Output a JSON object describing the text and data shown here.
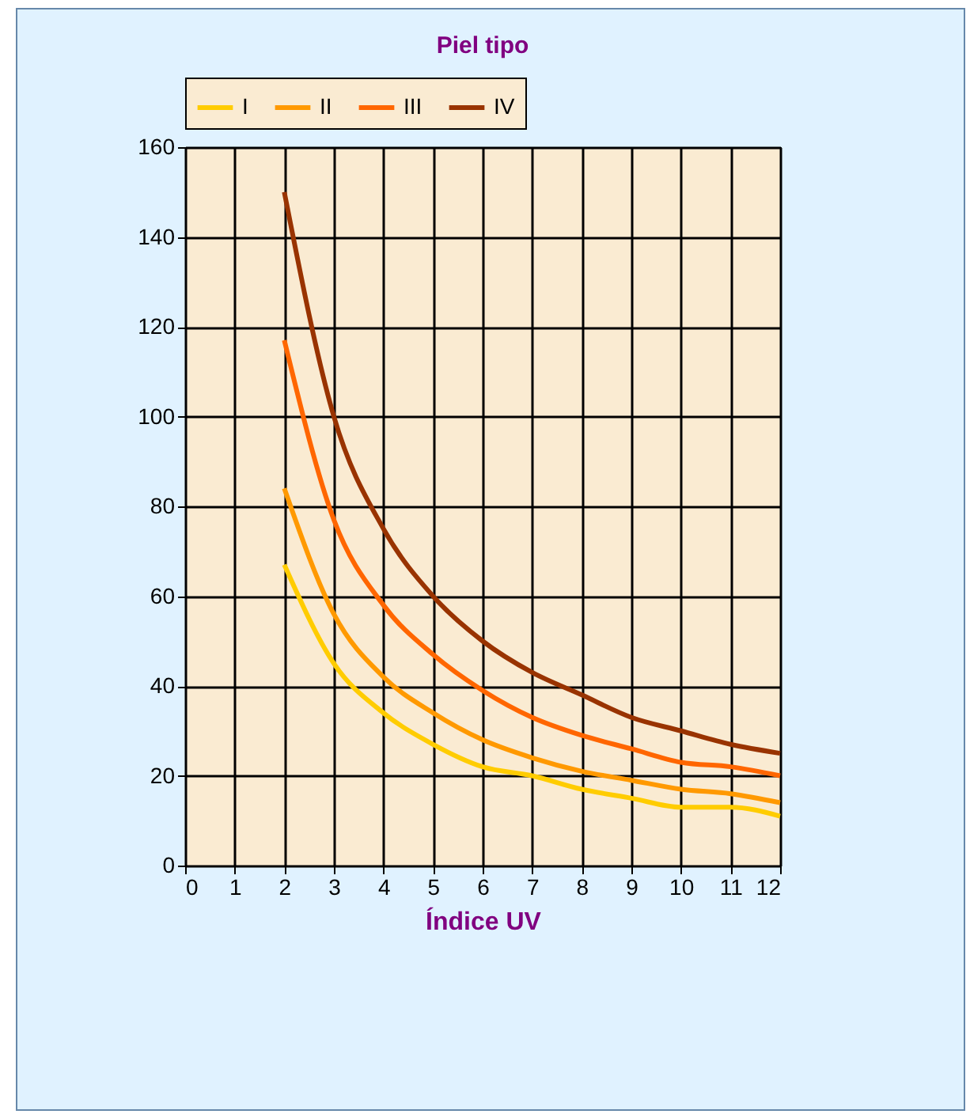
{
  "chart_data": {
    "type": "line",
    "title": "Piel tipo",
    "xlabel": "Índice UV",
    "x": [
      2,
      3,
      4,
      5,
      6,
      7,
      8,
      9,
      10,
      11,
      12
    ],
    "xlim": [
      0,
      12
    ],
    "xticks": [
      0,
      1,
      2,
      3,
      4,
      5,
      6,
      7,
      8,
      9,
      10,
      11,
      12
    ],
    "ylim": [
      0,
      160
    ],
    "yticks": [
      0,
      20,
      40,
      60,
      80,
      100,
      120,
      140,
      160
    ],
    "grid": true,
    "legend": "top",
    "line_style": "solid",
    "marker": "none",
    "series": [
      {
        "name": "I",
        "color": "#ffcc00",
        "values": [
          67,
          45,
          34,
          27,
          22,
          20,
          17,
          15,
          13,
          13,
          11
        ]
      },
      {
        "name": "II",
        "color": "#ff9900",
        "values": [
          84,
          56,
          42,
          34,
          28,
          24,
          21,
          19,
          17,
          16,
          14
        ]
      },
      {
        "name": "III",
        "color": "#ff6600",
        "values": [
          117,
          77,
          58,
          47,
          39,
          33,
          29,
          26,
          23,
          22,
          20
        ]
      },
      {
        "name": "IV",
        "color": "#993300",
        "values": [
          150,
          100,
          75,
          60,
          50,
          43,
          38,
          33,
          30,
          27,
          25
        ]
      }
    ]
  }
}
